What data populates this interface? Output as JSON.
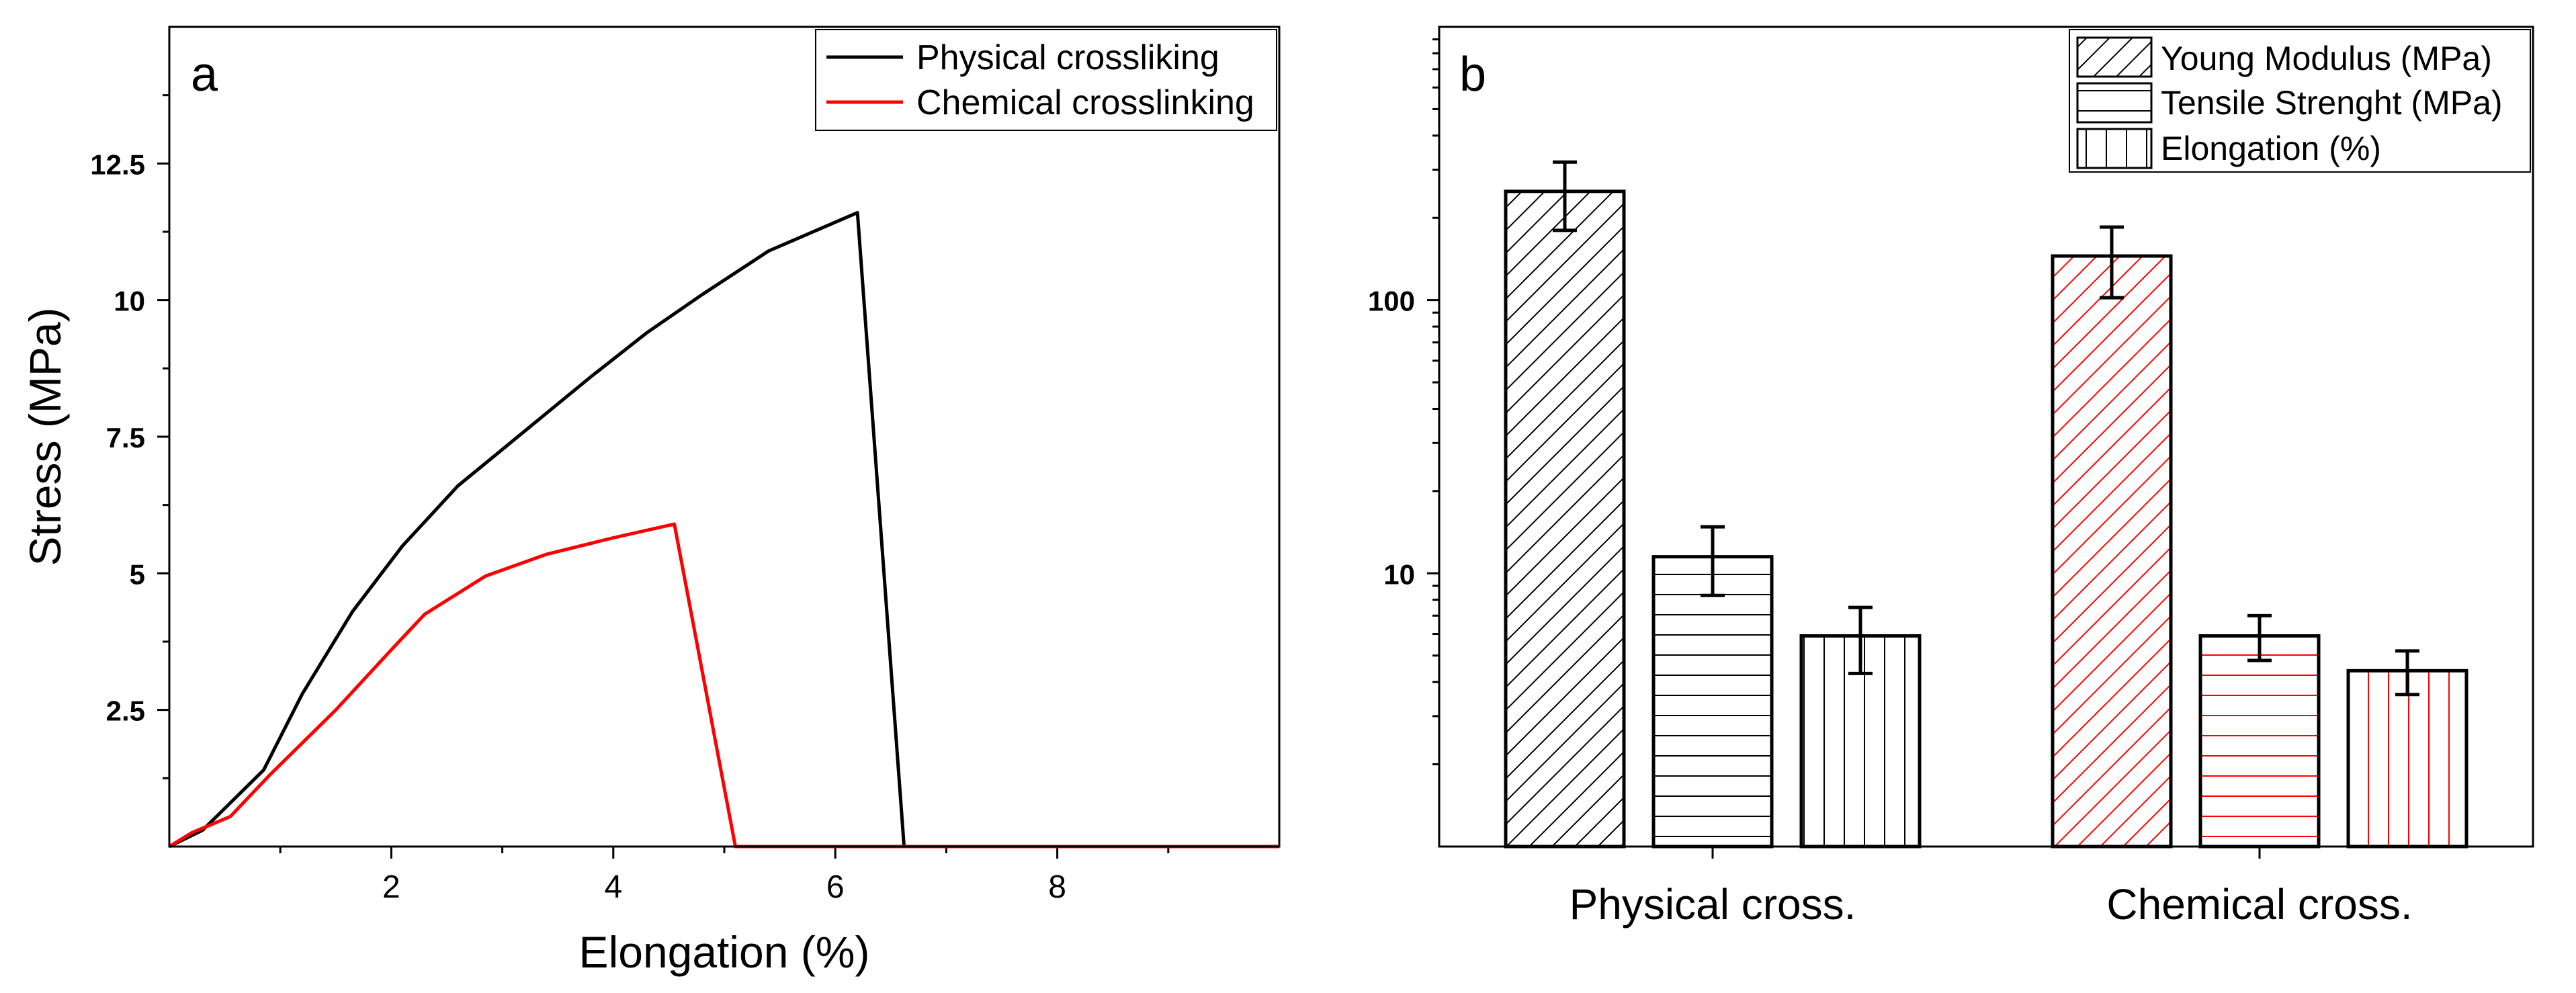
{
  "chart_data": [
    {
      "panel_label": "a",
      "type": "line",
      "xlabel": "Elongation (%)",
      "ylabel": "Stress (MPa)",
      "xlim": [
        0,
        10
      ],
      "ylim": [
        0,
        15
      ],
      "xticks": [
        2,
        4,
        6,
        8
      ],
      "xtick_labels": [
        "2",
        "4",
        "6",
        "8"
      ],
      "yticks": [
        2.5,
        5,
        7.5,
        10,
        12.5
      ],
      "ytick_labels": [
        "2.5",
        "5",
        "7.5",
        "10",
        "12.5"
      ],
      "legend_position": "top-right",
      "series": [
        {
          "name": "Physical crossliking",
          "color": "#000000",
          "x": [
            0,
            0.3,
            0.5,
            0.85,
            1.2,
            1.65,
            2.1,
            2.6,
            3.2,
            3.8,
            4.3,
            4.8,
            5.4,
            6.2,
            6.62,
            10
          ],
          "y": [
            0,
            0.3,
            0.7,
            1.4,
            2.8,
            4.3,
            5.5,
            6.6,
            7.6,
            8.6,
            9.4,
            10.1,
            10.9,
            11.6,
            0,
            0
          ]
        },
        {
          "name": "Chemical crosslinking",
          "color": "#ff0000",
          "x": [
            0,
            0.2,
            0.55,
            0.9,
            1.5,
            2.0,
            2.3,
            2.85,
            3.4,
            4.0,
            4.55,
            5.1,
            10
          ],
          "y": [
            0,
            0.25,
            0.55,
            1.3,
            2.5,
            3.6,
            4.25,
            4.95,
            5.35,
            5.65,
            5.9,
            0,
            0
          ]
        }
      ]
    },
    {
      "panel_label": "b",
      "type": "bar",
      "yscale": "log",
      "ylim": [
        1,
        1000
      ],
      "yticks": [
        10,
        100
      ],
      "ytick_labels": [
        "10",
        "100"
      ],
      "categories": [
        "Physical cross.",
        "Chemical cross."
      ],
      "legend_position": "top-right",
      "category_colors": [
        "#000000",
        "#ff0000"
      ],
      "series": [
        {
          "name": "Young Modulus (MPa)",
          "pattern": "diagonal",
          "values": [
            250,
            145
          ],
          "error": [
            [
              180,
              320
            ],
            [
              102,
              185
            ]
          ]
        },
        {
          "name": "Tensile Strenght (MPa)",
          "pattern": "horizontal",
          "values": [
            11.5,
            5.9
          ],
          "error": [
            [
              8.3,
              14.8
            ],
            [
              4.8,
              7.0
            ]
          ]
        },
        {
          "name": "Elongation (%)",
          "pattern": "vertical",
          "values": [
            5.9,
            4.4
          ],
          "error": [
            [
              4.3,
              7.5
            ],
            [
              3.6,
              5.2
            ]
          ]
        }
      ]
    }
  ]
}
